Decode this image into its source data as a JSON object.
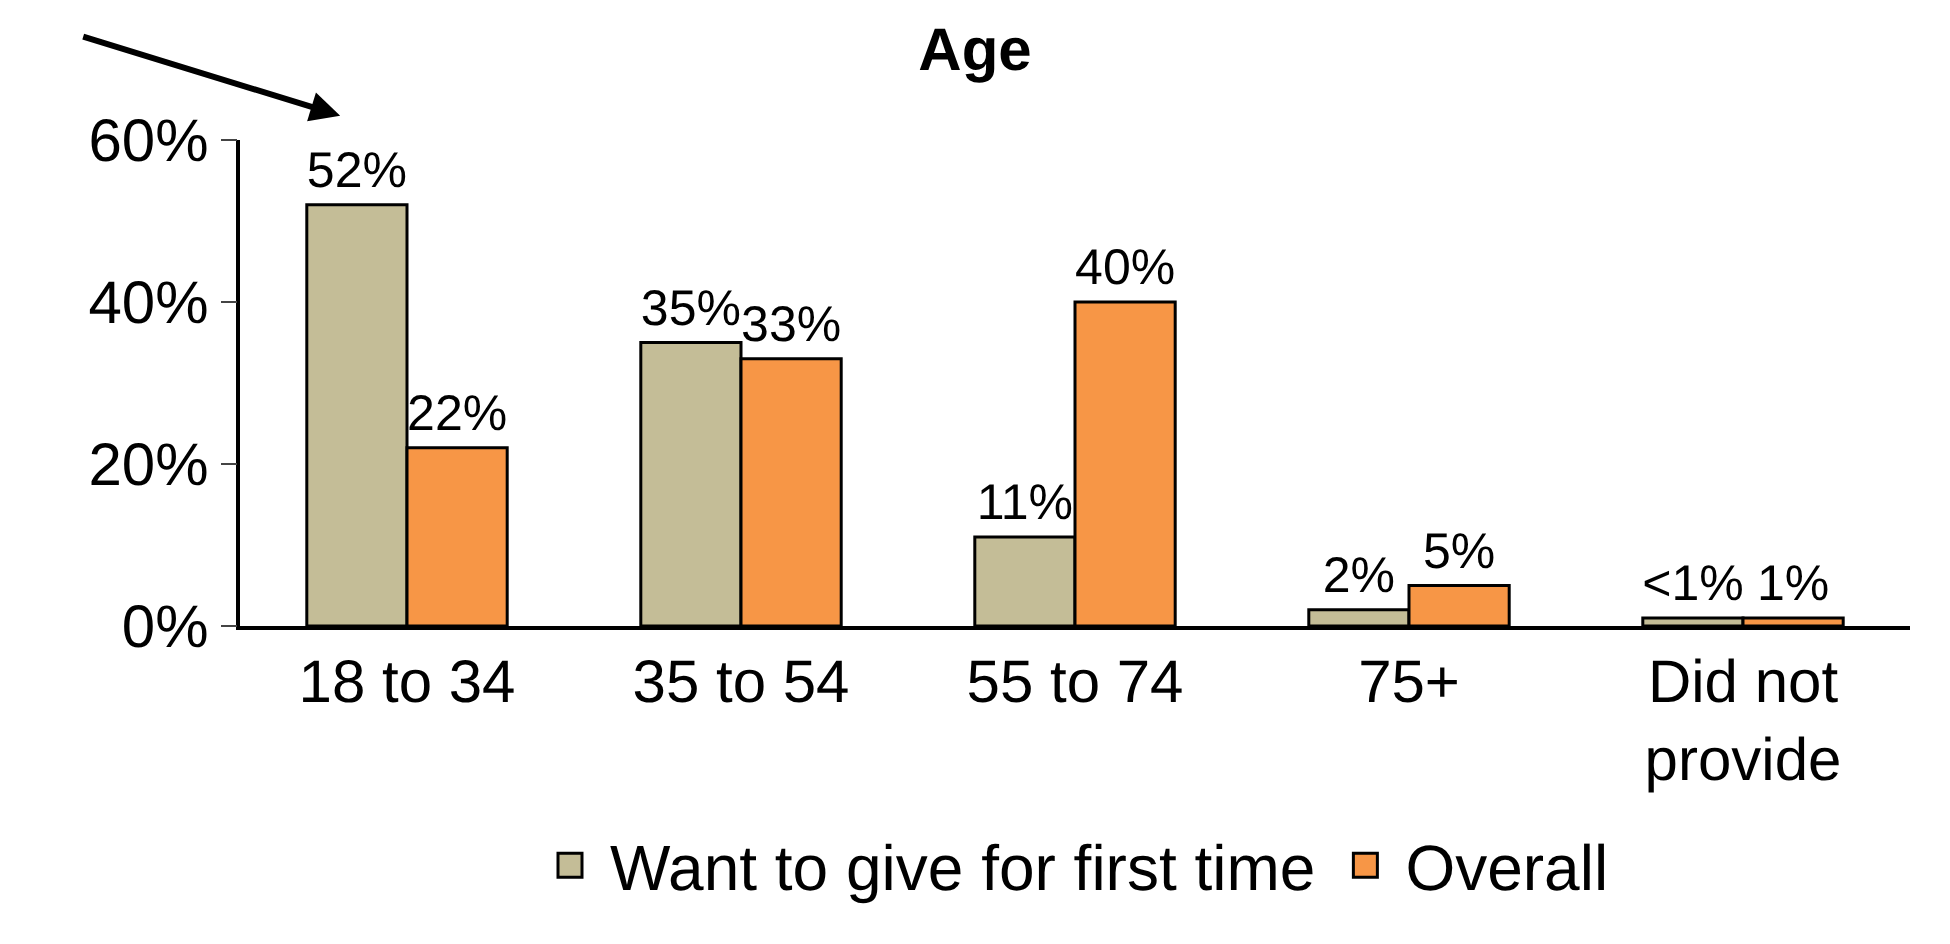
{
  "chart_data": {
    "type": "bar",
    "title": "Age",
    "categories": [
      "18 to 34",
      "35 to 54",
      "55 to 74",
      "75+",
      "Did not provide"
    ],
    "series": [
      {
        "name": "Want to give for first time",
        "color": "#c4bd97",
        "values": [
          52,
          35,
          11,
          2,
          1
        ],
        "value_labels": [
          "52%",
          "35%",
          "11%",
          "2%",
          "<1%"
        ]
      },
      {
        "name": "Overall",
        "color": "#f79646",
        "values": [
          22,
          33,
          40,
          5,
          1
        ],
        "value_labels": [
          "22%",
          "33%",
          "40%",
          "5%",
          "1%"
        ]
      }
    ],
    "ylim": [
      0,
      60
    ],
    "yticks": [
      {
        "value": 0,
        "label": "0%"
      },
      {
        "value": 20,
        "label": "20%"
      },
      {
        "value": 40,
        "label": "40%"
      },
      {
        "value": 60,
        "label": "60%"
      }
    ],
    "legend": "bottom"
  }
}
